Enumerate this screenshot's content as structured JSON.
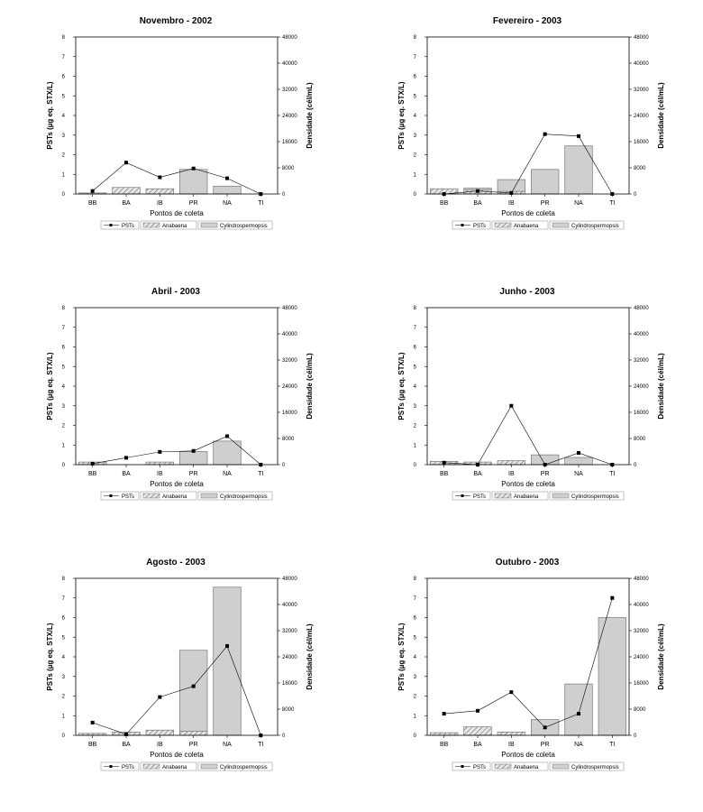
{
  "legend": {
    "psts": "PSTs",
    "anabaena": "Anabaena",
    "cylindro": "Cylindrospermopsis"
  },
  "colors": {
    "cylindro_fill": "#cfcfcf",
    "anabaena_fill": "#e6e6e6",
    "line": "#000000",
    "axis": "#000000"
  },
  "chart_data": [
    {
      "type": "bar",
      "title": "Novembro - 2002",
      "xlabel": "Pontos de coleta",
      "ylabel": "PSTs (µg eq. STX/L)",
      "y2label": "Densidade (cél/mL)",
      "categories": [
        "BB",
        "BA",
        "IB",
        "PR",
        "NA",
        "TI"
      ],
      "ylim": [
        0,
        8
      ],
      "y2lim": [
        0,
        48000
      ],
      "yticks": [
        "0",
        "1",
        "2",
        "3",
        "4",
        "5",
        "6",
        "7",
        "8"
      ],
      "y2ticks": [
        "0",
        "8000",
        "16000",
        "24000",
        "32000",
        "40000",
        "48000"
      ],
      "series": [
        {
          "name": "PSTs",
          "kind": "line",
          "axis": "left",
          "values": [
            0.15,
            1.6,
            0.85,
            1.3,
            0.8,
            0
          ]
        },
        {
          "name": "Anabaena",
          "kind": "bar",
          "axis": "right",
          "values": [
            300,
            2000,
            1600,
            0,
            0,
            0
          ]
        },
        {
          "name": "Cylindrospermopsis",
          "kind": "bar",
          "axis": "right",
          "values": [
            0,
            0,
            0,
            7500,
            2400,
            0
          ]
        }
      ]
    },
    {
      "type": "bar",
      "title": "Fevereiro - 2003",
      "xlabel": "Pontos de coleta",
      "ylabel": "PSTs (µg eq. STX/L)",
      "y2label": "Densidade (cél/mL)",
      "categories": [
        "BB",
        "BA",
        "IB",
        "PR",
        "NA",
        "TI"
      ],
      "ylim": [
        0,
        8
      ],
      "y2lim": [
        0,
        48000
      ],
      "yticks": [
        "0",
        "1",
        "2",
        "3",
        "4",
        "5",
        "6",
        "7",
        "8"
      ],
      "y2ticks": [
        "0",
        "8000",
        "16000",
        "24000",
        "32000",
        "40000",
        "48000"
      ],
      "series": [
        {
          "name": "PSTs",
          "kind": "line",
          "axis": "left",
          "values": [
            0,
            0.15,
            0.05,
            3.05,
            2.95,
            0
          ]
        },
        {
          "name": "Anabaena",
          "kind": "bar",
          "axis": "right",
          "values": [
            1600,
            1200,
            800,
            0,
            0,
            0
          ]
        },
        {
          "name": "Cylindrospermopsis",
          "kind": "bar",
          "axis": "right",
          "values": [
            0,
            600,
            3600,
            7500,
            14700,
            0
          ]
        }
      ]
    },
    {
      "type": "bar",
      "title": "Abril - 2003",
      "xlabel": "Pontos de coleta",
      "ylabel": "PSTs (µg eq. STX/L)",
      "y2label": "Densidade (cél/mL)",
      "categories": [
        "BB",
        "BA",
        "IB",
        "PR",
        "NA",
        "TI"
      ],
      "ylim": [
        0,
        8
      ],
      "y2lim": [
        0,
        48000
      ],
      "yticks": [
        "0",
        "1",
        "2",
        "3",
        "4",
        "5",
        "6",
        "7",
        "8"
      ],
      "y2ticks": [
        "0",
        "8000",
        "16000",
        "24000",
        "32000",
        "40000",
        "48000"
      ],
      "series": [
        {
          "name": "PSTs",
          "kind": "line",
          "axis": "left",
          "values": [
            0.05,
            0.35,
            0.65,
            0.7,
            1.45,
            0
          ]
        },
        {
          "name": "Anabaena",
          "kind": "bar",
          "axis": "right",
          "values": [
            800,
            0,
            800,
            0,
            0,
            0
          ]
        },
        {
          "name": "Cylindrospermopsis",
          "kind": "bar",
          "axis": "right",
          "values": [
            0,
            0,
            0,
            4000,
            7200,
            0
          ]
        }
      ]
    },
    {
      "type": "bar",
      "title": "Junho - 2003",
      "xlabel": "Pontos de coleta",
      "ylabel": "PSTs (µg eq. STX/L)",
      "y2label": "Densidade (cél/mL)",
      "categories": [
        "BB",
        "BA",
        "IB",
        "PR",
        "NA",
        "TI"
      ],
      "ylim": [
        0,
        8
      ],
      "y2lim": [
        0,
        48000
      ],
      "yticks": [
        "0",
        "1",
        "2",
        "3",
        "4",
        "5",
        "6",
        "7",
        "8"
      ],
      "y2ticks": [
        "0",
        "8000",
        "16000",
        "24000",
        "32000",
        "40000",
        "48000"
      ],
      "series": [
        {
          "name": "PSTs",
          "kind": "line",
          "axis": "left",
          "values": [
            0.1,
            0,
            3.0,
            0,
            0.6,
            0
          ]
        },
        {
          "name": "Anabaena",
          "kind": "bar",
          "axis": "right",
          "values": [
            1000,
            800,
            1200,
            0,
            0,
            0
          ]
        },
        {
          "name": "Cylindrospermopsis",
          "kind": "bar",
          "axis": "right",
          "values": [
            0,
            0,
            0,
            3000,
            2200,
            0
          ]
        }
      ]
    },
    {
      "type": "bar",
      "title": "Agosto - 2003",
      "xlabel": "Pontos de coleta",
      "ylabel": "PSTs (µg eq. STX/L)",
      "y2label": "Densidade (cél/mL)",
      "categories": [
        "BB",
        "BA",
        "IB",
        "PR",
        "NA",
        "TI"
      ],
      "ylim": [
        0,
        8
      ],
      "y2lim": [
        0,
        48000
      ],
      "yticks": [
        "0",
        "1",
        "2",
        "3",
        "4",
        "5",
        "6",
        "7",
        "8"
      ],
      "y2ticks": [
        "0",
        "8000",
        "16000",
        "24000",
        "32000",
        "40000",
        "48000"
      ],
      "series": [
        {
          "name": "PSTs",
          "kind": "line",
          "axis": "left",
          "values": [
            0.65,
            0.05,
            1.95,
            2.5,
            4.55,
            0
          ]
        },
        {
          "name": "Anabaena",
          "kind": "bar",
          "axis": "right",
          "values": [
            600,
            1000,
            1600,
            1200,
            0,
            0
          ]
        },
        {
          "name": "Cylindrospermopsis",
          "kind": "bar",
          "axis": "right",
          "values": [
            0,
            0,
            0,
            24800,
            45300,
            0
          ]
        }
      ]
    },
    {
      "type": "bar",
      "title": "Outubro - 2003",
      "xlabel": "Pontos de coleta",
      "ylabel": "PSTs (µg eq. STX/L)",
      "y2label": "Densidade (cél/mL)",
      "categories": [
        "BB",
        "BA",
        "IB",
        "PR",
        "NA",
        "TI"
      ],
      "ylim": [
        0,
        8
      ],
      "y2lim": [
        0,
        48000
      ],
      "yticks": [
        "0",
        "1",
        "2",
        "3",
        "4",
        "5",
        "6",
        "7",
        "8"
      ],
      "y2ticks": [
        "0",
        "8000",
        "16000",
        "24000",
        "32000",
        "40000",
        "48000"
      ],
      "series": [
        {
          "name": "PSTs",
          "kind": "line",
          "axis": "left",
          "values": [
            1.1,
            1.25,
            2.2,
            0.4,
            1.1,
            7.0
          ]
        },
        {
          "name": "Anabaena",
          "kind": "bar",
          "axis": "right",
          "values": [
            800,
            2600,
            1000,
            0,
            0,
            0
          ]
        },
        {
          "name": "Cylindrospermopsis",
          "kind": "bar",
          "axis": "right",
          "values": [
            0,
            0,
            0,
            4800,
            15700,
            36000
          ]
        }
      ]
    }
  ]
}
